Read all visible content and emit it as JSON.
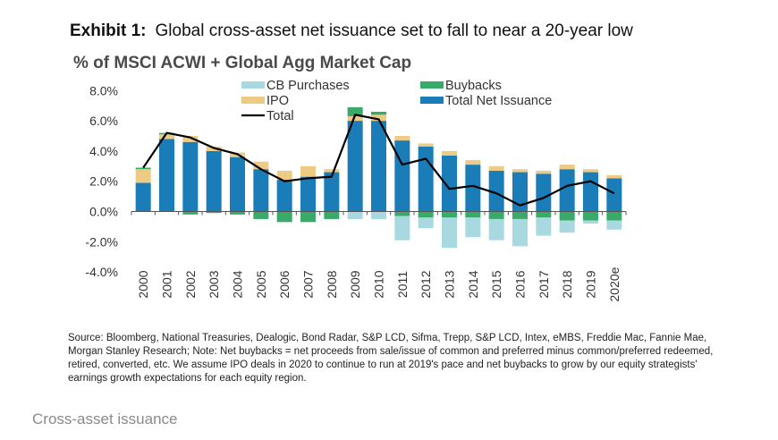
{
  "header": {
    "exhibit_label": "Exhibit 1:",
    "title": "Global cross-asset net issuance set to fall to near a 20-year low",
    "subtitle": "% of MSCI ACWI + Global Agg Market Cap"
  },
  "source_note": "Source: Bloomberg, National Treasuries, Dealogic, Bond Radar, S&P LCD, Sifma, Trepp, S&P LCD, Intex, eMBS, Freddie Mac, Fannie Mae, Morgan Stanley Research; Note: Net buybacks = net proceeds from sale/issue of common and preferred minus common/preferred redeemed, retired, converted, etc. We assume IPO deals in 2020 to continue to run at 2019's pace and net buybacks to grow by our equity strategists' earnings growth expectations for each equity region.",
  "caption": "Cross-asset issuance",
  "colors": {
    "cb_purchases": "#a8d8e0",
    "buybacks": "#3aaa6a",
    "ipo": "#eecb85",
    "total_net_issuance": "#1a7db8",
    "total_line": "#000000",
    "axis": "#555555"
  },
  "chart_data": {
    "type": "bar",
    "stacked": true,
    "categories": [
      "2000",
      "2001",
      "2002",
      "2003",
      "2004",
      "2005",
      "2006",
      "2007",
      "2008",
      "2009",
      "2010",
      "2011",
      "2012",
      "2013",
      "2014",
      "2015",
      "2016",
      "2017",
      "2018",
      "2019",
      "2020e"
    ],
    "series": [
      {
        "name": "Total Net Issuance",
        "values": [
          1.9,
          4.8,
          4.6,
          4.0,
          3.6,
          2.8,
          2.1,
          2.3,
          2.6,
          6.0,
          6.0,
          4.7,
          4.3,
          3.7,
          3.1,
          2.7,
          2.6,
          2.5,
          2.8,
          2.6,
          2.2
        ]
      },
      {
        "name": "IPO",
        "values": [
          0.9,
          0.3,
          0.4,
          0.3,
          0.3,
          0.5,
          0.6,
          0.7,
          0.2,
          0.3,
          0.4,
          0.3,
          0.2,
          0.3,
          0.3,
          0.3,
          0.2,
          0.2,
          0.3,
          0.2,
          0.2
        ]
      },
      {
        "name": "Buybacks",
        "values": [
          0.1,
          0.1,
          -0.2,
          -0.1,
          -0.2,
          -0.5,
          -0.7,
          -0.7,
          -0.5,
          0.6,
          0.2,
          -0.3,
          -0.4,
          -0.4,
          -0.4,
          -0.5,
          -0.5,
          -0.4,
          -0.6,
          -0.6,
          -0.6
        ]
      },
      {
        "name": "CB Purchases",
        "values": [
          0,
          0,
          0,
          0,
          0,
          0,
          0,
          0,
          0,
          -0.5,
          -0.5,
          -1.6,
          -0.7,
          -2.0,
          -1.3,
          -1.4,
          -1.8,
          -1.2,
          -0.8,
          -0.2,
          -0.6
        ]
      }
    ],
    "total_line": {
      "name": "Total",
      "values": [
        2.9,
        5.2,
        4.9,
        4.2,
        3.8,
        2.8,
        2.0,
        2.2,
        2.3,
        6.4,
        6.1,
        3.1,
        3.5,
        1.5,
        1.7,
        1.2,
        0.4,
        0.9,
        1.7,
        2.0,
        1.2
      ]
    },
    "ylim": [
      -4.0,
      8.0
    ],
    "yticks": [
      "8.0%",
      "6.0%",
      "4.0%",
      "2.0%",
      "0.0%",
      "-2.0%",
      "-4.0%"
    ],
    "ytick_values": [
      8,
      6,
      4,
      2,
      0,
      -2,
      -4
    ],
    "legend": [
      "CB Purchases",
      "Buybacks",
      "IPO",
      "Total Net Issuance",
      "Total"
    ],
    "legend_position": "top",
    "grid": false
  }
}
